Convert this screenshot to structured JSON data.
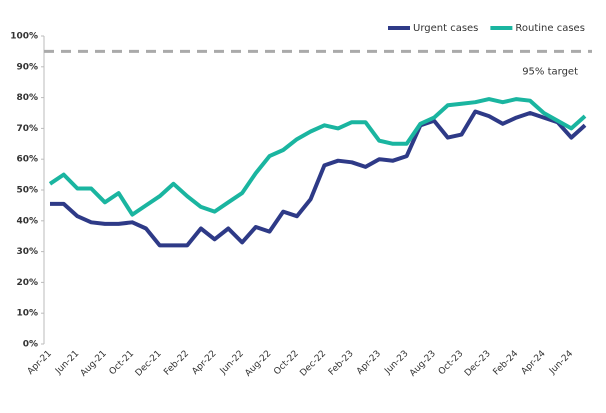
{
  "chart_data": {
    "type": "line",
    "categories": [
      "Apr-21",
      null,
      "Jun-21",
      null,
      "Aug-21",
      null,
      "Oct-21",
      null,
      "Dec-21",
      null,
      "Feb-22",
      null,
      "Apr-22",
      null,
      "Jun-22",
      null,
      "Aug-22",
      null,
      "Oct-22",
      null,
      "Dec-22",
      null,
      "Feb-23",
      null,
      "Apr-23",
      null,
      "Jun-23",
      null,
      "Aug-23",
      null,
      "Oct-23",
      null,
      "Dec-23",
      null,
      "Feb-24",
      null,
      "Apr-24",
      null,
      "Jun-24",
      null
    ],
    "series": [
      {
        "name": "Urgent cases",
        "color": "#2e3a87",
        "values": [
          45.5,
          45.5,
          41.5,
          39.5,
          39,
          39,
          39.5,
          37.5,
          32,
          32,
          32,
          37.5,
          34,
          37.5,
          33,
          38,
          36.5,
          43,
          41.5,
          47,
          58,
          59.5,
          59,
          57.5,
          60,
          59.5,
          61,
          71,
          72.5,
          67,
          68,
          75.5,
          74,
          71.5,
          73.5,
          75,
          73.5,
          72,
          67,
          71
        ]
      },
      {
        "name": "Routine cases",
        "color": "#1ab5a0",
        "values": [
          52,
          55,
          50.5,
          50.5,
          46,
          49,
          42,
          45,
          48,
          52,
          48,
          44.5,
          43,
          46,
          49,
          55.5,
          61,
          63,
          66.5,
          69,
          71,
          70,
          72,
          72,
          66,
          65,
          65,
          71.5,
          73.5,
          77.5,
          78,
          78.5,
          79.5,
          78.5,
          79.5,
          79,
          75,
          72.5,
          70,
          74
        ]
      }
    ],
    "target": 95,
    "target_label": "95% target",
    "target_color": "#aaaaaa",
    "ylim": [
      0,
      100
    ],
    "yticks": [
      {
        "value": 0,
        "label": "0%"
      },
      {
        "value": 10,
        "label": "10%"
      },
      {
        "value": 20,
        "label": "20%"
      },
      {
        "value": 30,
        "label": "30%"
      },
      {
        "value": 40,
        "label": "40%"
      },
      {
        "value": 50,
        "label": "50%"
      },
      {
        "value": 60,
        "label": "60%"
      },
      {
        "value": 70,
        "label": "70%"
      },
      {
        "value": 80,
        "label": "80%"
      },
      {
        "value": 90,
        "label": "90%"
      },
      {
        "value": 100,
        "label": "100%"
      }
    ],
    "legend": "top-right"
  }
}
